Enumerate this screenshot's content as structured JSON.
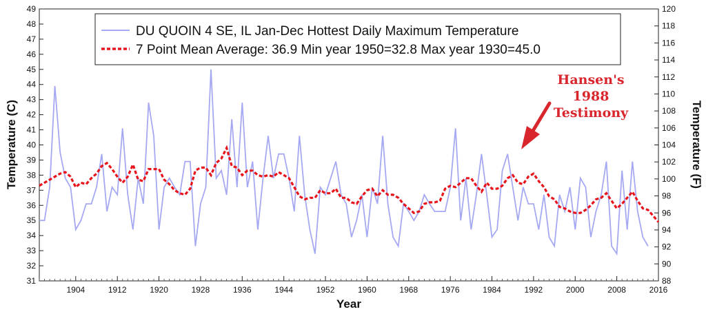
{
  "chart_data": {
    "type": "line",
    "xlabel": "Year",
    "ylabel_left": "Temperature (C)",
    "ylabel_right": "Temperature (F)",
    "xlim": [
      1897,
      2016
    ],
    "ylim": [
      31,
      49
    ],
    "ylim_right": [
      88,
      120
    ],
    "x_ticks": [
      "1904",
      "1912",
      "1920",
      "1928",
      "1936",
      "1944",
      "1952",
      "1960",
      "1968",
      "1976",
      "1984",
      "1992",
      "2000",
      "2008",
      "2016"
    ],
    "y_ticks_left": [
      "31",
      "32",
      "33",
      "34",
      "35",
      "36",
      "37",
      "38",
      "39",
      "40",
      "41",
      "42",
      "43",
      "44",
      "45",
      "46",
      "47",
      "48",
      "49"
    ],
    "y_ticks_right": [
      "88",
      "90",
      "92",
      "94",
      "96",
      "98",
      "100",
      "102",
      "104",
      "106",
      "108",
      "110",
      "112",
      "114",
      "116",
      "118",
      "120"
    ],
    "grid": false,
    "legend_position": "top",
    "legend": {
      "line1": "DU QUOIN 4 SE, IL  Jan-Dec  Hottest Daily Maximum Temperature",
      "line2": "7 Point Mean  Average: 36.9  Min year 1950=32.8  Max year 1930=45.0"
    },
    "annotation": {
      "lines": [
        "Hansen's",
        "1988",
        "Testimony"
      ],
      "color": "#d9262c"
    },
    "colors": {
      "series": "#a5a8f2",
      "mean": "#e8141c",
      "annotation": "#d9262c"
    },
    "years_start": 1897,
    "series": [
      {
        "name": "DU QUOIN 4 SE, IL  Jan-Dec  Hottest Daily Maximum Temperature",
        "values": [
          35.0,
          35.0,
          37.2,
          43.9,
          39.5,
          37.8,
          37.2,
          34.4,
          35.0,
          36.1,
          36.1,
          37.2,
          39.4,
          35.6,
          37.2,
          36.7,
          41.1,
          36.7,
          34.4,
          37.8,
          36.1,
          42.8,
          40.6,
          34.4,
          37.2,
          37.8,
          37.2,
          36.7,
          38.9,
          38.9,
          33.3,
          36.1,
          37.2,
          45.0,
          37.8,
          38.3,
          36.7,
          41.7,
          37.2,
          42.8,
          37.2,
          38.9,
          34.4,
          37.8,
          40.6,
          37.8,
          39.4,
          39.4,
          37.8,
          35.6,
          40.6,
          36.7,
          34.4,
          32.8,
          37.2,
          36.7,
          37.8,
          38.9,
          36.7,
          36.1,
          33.9,
          35.0,
          36.7,
          33.9,
          37.2,
          36.1,
          40.6,
          36.1,
          33.9,
          33.3,
          36.1,
          35.6,
          35.0,
          35.6,
          36.7,
          36.1,
          35.6,
          35.6,
          35.6,
          37.2,
          41.1,
          35.0,
          37.8,
          34.4,
          36.7,
          39.4,
          36.7,
          33.9,
          34.4,
          38.3,
          39.4,
          37.2,
          35.0,
          37.2,
          36.1,
          36.1,
          34.4,
          36.7,
          33.9,
          33.3,
          36.7,
          35.6,
          37.2,
          34.4,
          37.8,
          37.2,
          33.9,
          35.6,
          36.7,
          38.9,
          33.3,
          32.8,
          38.3,
          34.4,
          38.9,
          35.6,
          33.9,
          33.3
        ]
      },
      {
        "name": "7 Point Mean",
        "values": [
          37.3,
          37.5,
          37.7,
          37.9,
          38.1,
          38.2,
          37.9,
          37.2,
          37.5,
          37.4,
          37.8,
          38.1,
          38.6,
          38.8,
          38.4,
          37.9,
          37.5,
          37.9,
          38.7,
          37.7,
          37.6,
          38.4,
          38.4,
          38.4,
          37.7,
          37.4,
          37.0,
          36.8,
          36.7,
          37.1,
          38.3,
          38.5,
          38.5,
          38.0,
          38.8,
          39.1,
          39.8,
          38.6,
          38.5,
          38.0,
          38.3,
          38.3,
          38.0,
          37.9,
          38.0,
          37.9,
          38.2,
          38.0,
          37.8,
          37.2,
          36.6,
          36.4,
          36.5,
          36.5,
          37.0,
          36.8,
          36.8,
          37.1,
          36.5,
          36.5,
          36.2,
          36.1,
          36.6,
          37.0,
          37.1,
          36.6,
          37.0,
          36.7,
          36.7,
          36.5,
          36.1,
          35.8,
          35.5,
          35.6,
          36.1,
          36.2,
          36.2,
          36.3,
          37.1,
          37.3,
          37.2,
          37.5,
          37.8,
          37.8,
          37.3,
          36.9,
          37.5,
          37.1,
          37.1,
          37.3,
          37.8,
          38.0,
          37.5,
          37.4,
          37.9,
          38.1,
          37.6,
          37.2,
          36.6,
          36.4,
          35.9,
          35.8,
          35.6,
          35.5,
          35.5,
          35.7,
          36.0,
          36.4,
          36.5,
          36.8,
          36.3,
          35.8,
          36.1,
          36.5,
          36.9,
          36.3,
          35.8,
          35.7,
          35.3,
          34.9
        ]
      }
    ]
  }
}
